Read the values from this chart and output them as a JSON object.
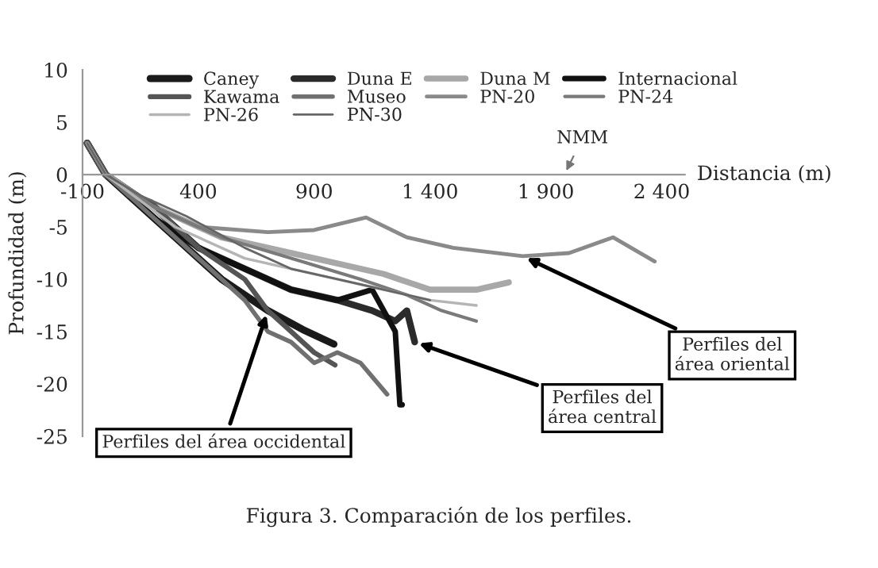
{
  "chart_data": {
    "type": "line",
    "xlabel": "Distancia (m)",
    "ylabel": "Profundidad (m)",
    "xlim": [
      -100,
      2500
    ],
    "xticks": [
      -100,
      400,
      900,
      {
        "value": 1400,
        "label": "1 400"
      },
      {
        "value": 1900,
        "label": "1 900"
      },
      {
        "value": 2400,
        "label": "2 400"
      }
    ],
    "ylim": [
      -25,
      10
    ],
    "yticks": [
      -25,
      -20,
      -15,
      -10,
      -5,
      0,
      5,
      10
    ],
    "grid": false,
    "legend": "top",
    "marker": "none",
    "line_style": "solid",
    "series": [
      {
        "name": "Caney",
        "color": "#1a1a1a",
        "x": [
          -80,
          0,
          100,
          300,
          500,
          700,
          850,
          985
        ],
        "values": [
          3,
          0,
          -2,
          -6,
          -10,
          -13,
          -14.8,
          -16.2
        ]
      },
      {
        "name": "Duna E",
        "color": "#2b2b2b",
        "x": [
          -80,
          0,
          200,
          400,
          600,
          800,
          1000,
          1150,
          1250,
          1300,
          1334
        ],
        "values": [
          3,
          0,
          -3,
          -7,
          -9,
          -11,
          -12,
          -13,
          -14,
          -13,
          -16
        ]
      },
      {
        "name": "Duna M",
        "color": "#a8a8a8",
        "x": [
          -80,
          0,
          200,
          500,
          900,
          1200,
          1400,
          1600,
          1740
        ],
        "values": [
          3,
          0,
          -3,
          -6,
          -8,
          -9.5,
          -11,
          -11,
          -10.3
        ]
      },
      {
        "name": "Internacional",
        "color": "#111111",
        "x": [
          -80,
          0,
          200,
          400,
          600,
          800,
          1000,
          1150,
          1250,
          1270,
          1280
        ],
        "values": [
          3,
          0,
          -4,
          -7,
          -9,
          -11,
          -12,
          -11,
          -15,
          -22,
          -22
        ]
      },
      {
        "name": "Kawama",
        "color": "#555555",
        "x": [
          -80,
          0,
          100,
          196,
          300,
          400,
          600,
          700,
          800,
          900,
          990
        ],
        "values": [
          3,
          0,
          -2,
          -2.6,
          -5,
          -7,
          -10,
          -13,
          -15,
          -17,
          -18.2
        ]
      },
      {
        "name": "Museo",
        "color": "#707070",
        "x": [
          -80,
          0,
          200,
          400,
          600,
          700,
          800,
          900,
          1000,
          1100,
          1215
        ],
        "values": [
          3,
          0,
          -4,
          -8,
          -12,
          -15,
          -16,
          -18,
          -17,
          -18,
          -21
        ]
      },
      {
        "name": "PN-20",
        "color": "#8a8a8a",
        "x": [
          -80,
          0,
          200,
          400,
          700,
          900,
          1124,
          1300,
          1500,
          1800,
          2000,
          2190,
          2370
        ],
        "values": [
          3,
          0,
          -3,
          -5,
          -5.5,
          -5.3,
          -4.1,
          -6,
          -7,
          -7.8,
          -7.5,
          -6,
          -8.3
        ]
      },
      {
        "name": "PN-24",
        "color": "#7a7a7a",
        "x": [
          -80,
          0,
          200,
          500,
          800,
          1100,
          1300,
          1450,
          1600
        ],
        "values": [
          3,
          0,
          -3,
          -6,
          -8,
          -10,
          -11.5,
          -13,
          -14
        ]
      },
      {
        "name": "PN-26",
        "color": "#b5b5b5",
        "x": [
          -80,
          0,
          300,
          600,
          900,
          1200,
          1400,
          1600
        ],
        "values": [
          3,
          0,
          -5,
          -8,
          -9.5,
          -11,
          -12,
          -12.5
        ]
      },
      {
        "name": "PN-30",
        "color": "#666666",
        "x": [
          -80,
          0,
          150,
          350,
          600,
          800,
          1000,
          1200,
          1400
        ],
        "values": [
          3,
          0,
          -2,
          -4,
          -7,
          -9,
          -10,
          -11,
          -12
        ]
      }
    ],
    "annotations": [
      "NMM",
      {
        "text": "Perfiles del\nárea oriental",
        "x": 1800,
        "y": -7.8
      },
      {
        "text": "Perfiles del\nárea central",
        "x": 1334,
        "y": -16
      },
      {
        "text": "Perfiles del área occidental",
        "x": 700,
        "y": -13
      },
      "Figura 3. Comparación de los perfiles."
    ]
  }
}
